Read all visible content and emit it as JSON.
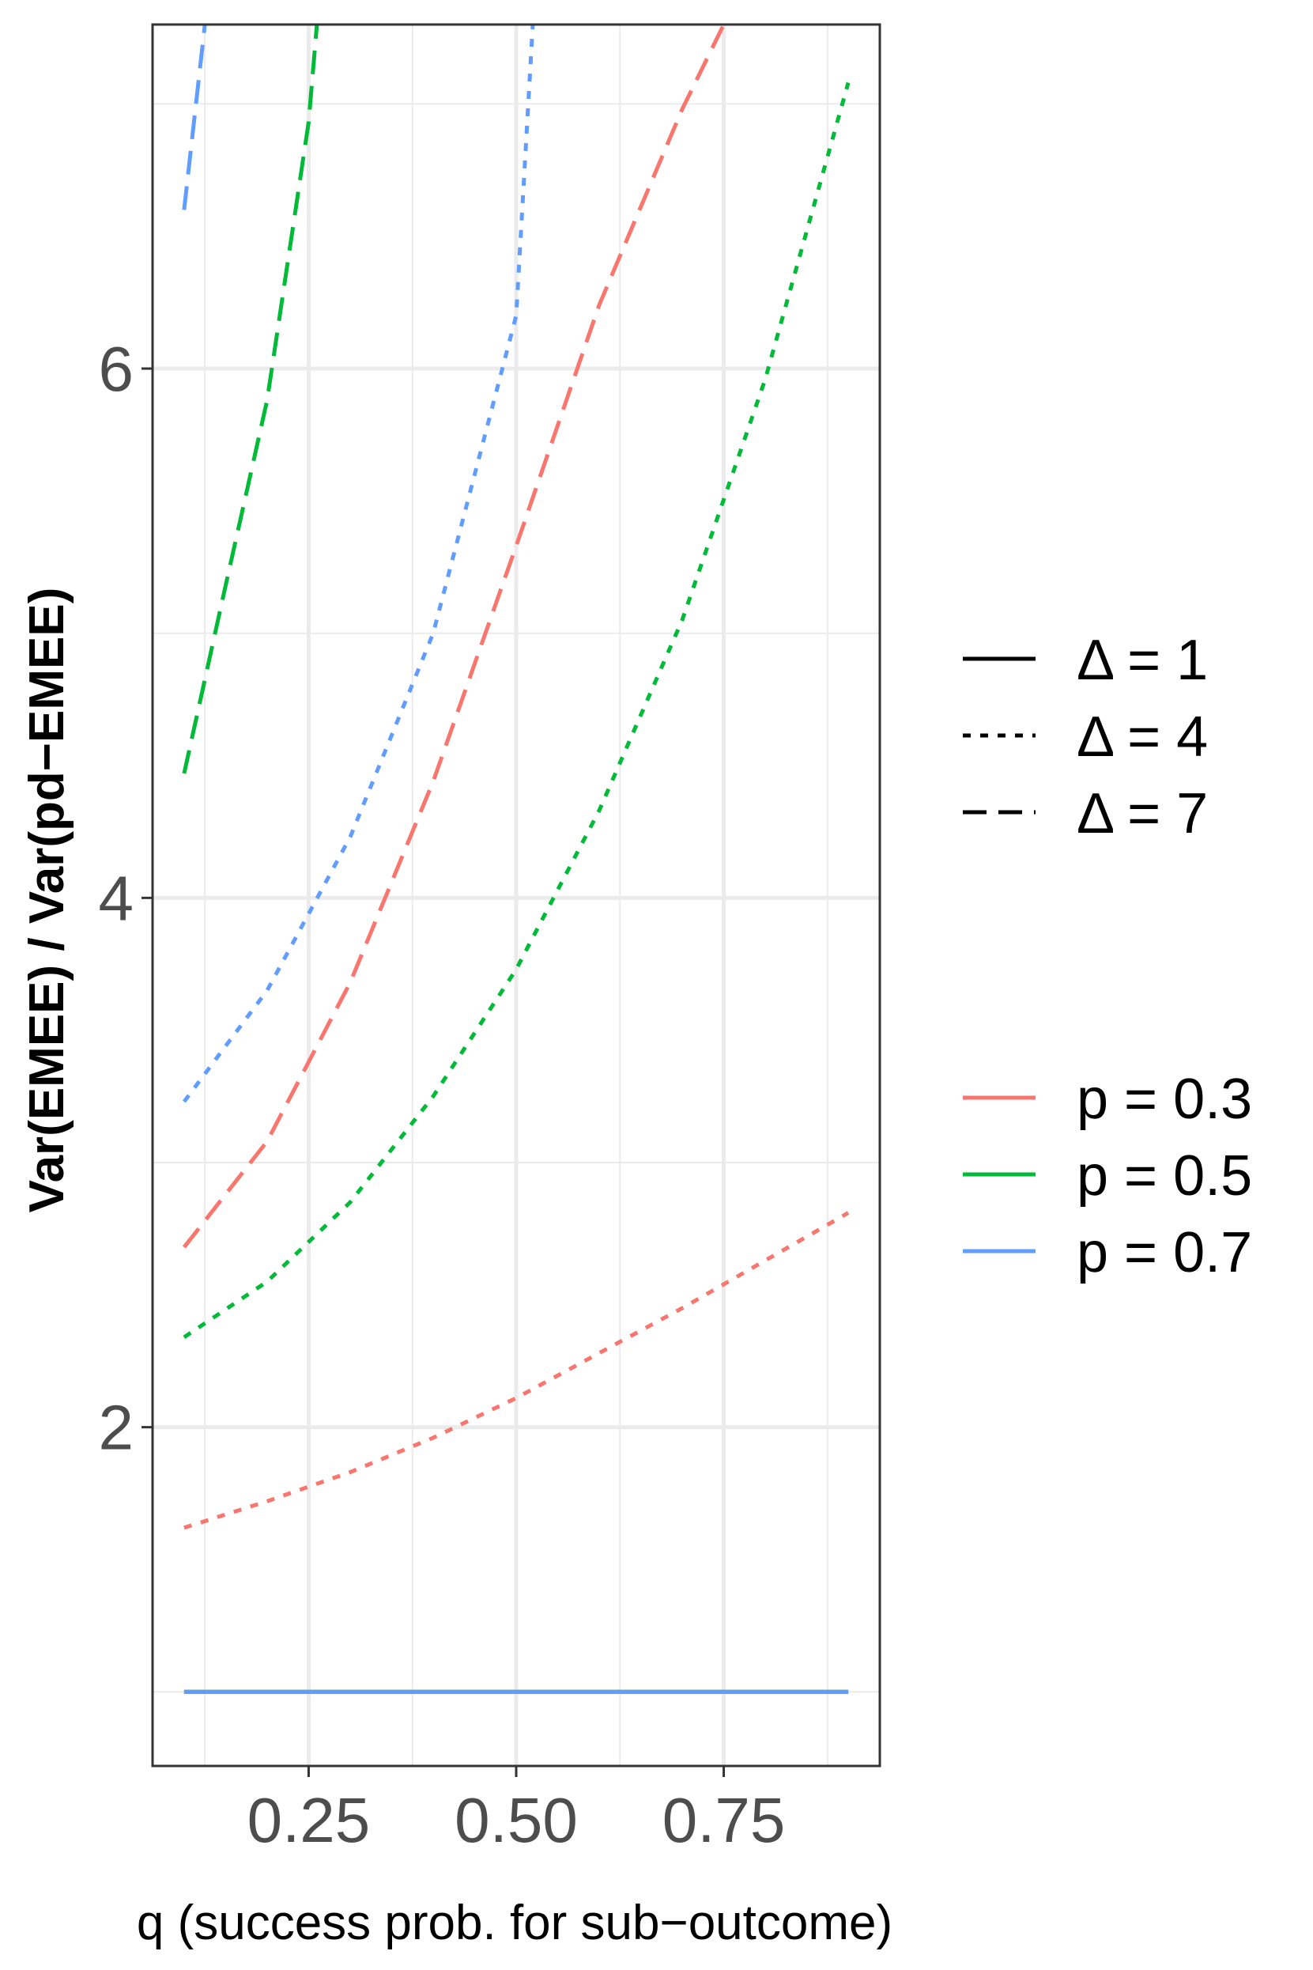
{
  "chart_data": {
    "type": "line",
    "xlabel": "q (success prob. for sub−outcome)",
    "ylabel": "Var(EMEE) / Var(pd−EMEE)",
    "xlim": [
      0.062,
      0.938
    ],
    "ylim": [
      0.72,
      7.3
    ],
    "x_ticks": [
      0.25,
      0.5,
      0.75
    ],
    "x_tick_labels": [
      "0.25",
      "0.50",
      "0.75"
    ],
    "y_ticks": [
      2,
      4,
      6
    ],
    "y_tick_labels": [
      "2",
      "4",
      "6"
    ],
    "grid": true,
    "legend_position": "right",
    "legend_linetype": [
      {
        "label": "Δ = 1",
        "linetype": "solid"
      },
      {
        "label": "Δ = 4",
        "linetype": "dotted"
      },
      {
        "label": "Δ = 7",
        "linetype": "dashed"
      }
    ],
    "legend_color": [
      {
        "label": "p = 0.3",
        "color": "#F8766D"
      },
      {
        "label": "p = 0.5",
        "color": "#00BA38"
      },
      {
        "label": "p = 0.7",
        "color": "#619CFF"
      }
    ],
    "series": [
      {
        "p": 0.3,
        "delta": 1,
        "color": "#F8766D",
        "linetype": "solid",
        "x": [
          0.1,
          0.9
        ],
        "y": [
          1.0,
          1.0
        ]
      },
      {
        "p": 0.5,
        "delta": 1,
        "color": "#00BA38",
        "linetype": "solid",
        "x": [
          0.1,
          0.9
        ],
        "y": [
          1.0,
          1.0
        ]
      },
      {
        "p": 0.7,
        "delta": 1,
        "color": "#619CFF",
        "linetype": "solid",
        "x": [
          0.1,
          0.9
        ],
        "y": [
          1.0,
          1.0
        ]
      },
      {
        "p": 0.3,
        "delta": 4,
        "color": "#F8766D",
        "linetype": "dotted",
        "x": [
          0.1,
          0.2,
          0.3,
          0.4,
          0.5,
          0.6,
          0.7,
          0.8,
          0.9
        ],
        "y": [
          1.62,
          1.72,
          1.83,
          1.96,
          2.11,
          2.28,
          2.45,
          2.63,
          2.81
        ]
      },
      {
        "p": 0.5,
        "delta": 4,
        "color": "#00BA38",
        "linetype": "dotted",
        "x": [
          0.1,
          0.2,
          0.3,
          0.4,
          0.5,
          0.6,
          0.7,
          0.8,
          0.9
        ],
        "y": [
          2.34,
          2.55,
          2.85,
          3.25,
          3.73,
          4.33,
          5.05,
          5.96,
          7.08
        ]
      },
      {
        "p": 0.7,
        "delta": 4,
        "color": "#619CFF",
        "linetype": "dotted",
        "x": [
          0.1,
          0.2,
          0.3,
          0.4,
          0.5,
          0.52
        ],
        "y": [
          3.23,
          3.65,
          4.23,
          5.0,
          6.2,
          7.3
        ]
      },
      {
        "p": 0.3,
        "delta": 7,
        "color": "#F8766D",
        "linetype": "dashed",
        "x": [
          0.1,
          0.2,
          0.3,
          0.4,
          0.5,
          0.6,
          0.7,
          0.75
        ],
        "y": [
          2.68,
          3.08,
          3.68,
          4.44,
          5.33,
          6.24,
          6.98,
          7.3
        ]
      },
      {
        "p": 0.5,
        "delta": 7,
        "color": "#00BA38",
        "linetype": "dashed",
        "x": [
          0.1,
          0.15,
          0.2,
          0.25,
          0.26
        ],
        "y": [
          4.47,
          5.18,
          5.88,
          6.93,
          7.3
        ]
      },
      {
        "p": 0.7,
        "delta": 7,
        "color": "#619CFF",
        "linetype": "dashed",
        "x": [
          0.1,
          0.125
        ],
        "y": [
          6.6,
          7.3
        ]
      }
    ]
  }
}
